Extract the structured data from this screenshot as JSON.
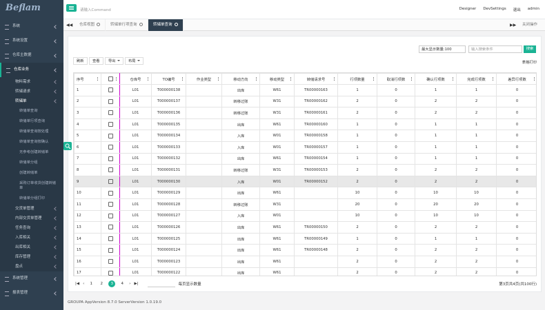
{
  "logo": "Beflam",
  "topbar": {
    "command_placeholder": "请输入Command",
    "links": [
      "Designer",
      "DevSettings",
      "退出",
      "admin"
    ]
  },
  "sidebar": [
    {
      "label": "系统"
    },
    {
      "label": "系统设置"
    },
    {
      "label": "仓库主数据"
    },
    {
      "label": "仓库业务",
      "children": [
        {
          "label": "物料需求"
        },
        {
          "label": "转储请求"
        },
        {
          "label": "转储单",
          "children": [
            {
              "label": "转储单查询"
            },
            {
              "label": "转储单行项查询"
            },
            {
              "label": "转储单查询按处理"
            },
            {
              "label": "转储单查询按确认"
            },
            {
              "label": "无参考创建转储单"
            },
            {
              "label": "转储单分组"
            },
            {
              "label": "创建转储单"
            },
            {
              "label": "采购订单收货创建转储单"
            },
            {
              "label": "转储单分组打印"
            }
          ]
        },
        {
          "label": "交货单管理"
        },
        {
          "label": "内部交货单管理"
        },
        {
          "label": "任务查询"
        },
        {
          "label": "入库相关"
        },
        {
          "label": "出库相关"
        },
        {
          "label": "库存管理"
        },
        {
          "label": "盘点"
        }
      ]
    },
    {
      "label": "系统管理"
    },
    {
      "label": "报表管理"
    }
  ],
  "tabs": [
    "仓库视图",
    "转储单行项查询",
    "转储单查询"
  ],
  "active_tab": 2,
  "tab_close_all": "关闭操作",
  "toolbar": {
    "max_display": "最大显示数量:100",
    "search_placeholder": "输入搜索条件",
    "search_button": "搜索",
    "buttons": [
      "刷新",
      "查看",
      "导出",
      "布局"
    ],
    "table_settings": "表格打印"
  },
  "table": {
    "columns": [
      "序号",
      "仓库号",
      "TO编号",
      "作业类型",
      "移动方向",
      "移动类型",
      "转储请求号",
      "行项数量",
      "取消行项数",
      "确认行项数",
      "完成行项数",
      "差异行项数"
    ],
    "highlighted_row": 8,
    "rows": [
      [
        1,
        "L01",
        "T000000138",
        null,
        "出库",
        "W61",
        "TR00000163",
        1,
        0,
        1,
        1,
        0
      ],
      [
        2,
        "L01",
        "T000000137",
        null,
        "转移过账",
        "W31",
        "TR00000162",
        2,
        0,
        2,
        2,
        0
      ],
      [
        3,
        "L01",
        "T000000136",
        null,
        "转移过账",
        "W31",
        "TR00000161",
        2,
        0,
        2,
        2,
        0
      ],
      [
        4,
        "L01",
        "T000000135",
        null,
        "出库",
        "W61",
        "TR00000160",
        1,
        0,
        1,
        1,
        0
      ],
      [
        5,
        "L01",
        "T000000134",
        null,
        "入库",
        "W01",
        "TR00000158",
        1,
        0,
        1,
        1,
        0
      ],
      [
        6,
        "L01",
        "T000000133",
        null,
        "入库",
        "W01",
        "TR00000157",
        1,
        0,
        1,
        1,
        0
      ],
      [
        7,
        "L01",
        "T000000132",
        null,
        "出库",
        "W61",
        "TR00000154",
        1,
        0,
        1,
        1,
        0
      ],
      [
        8,
        "L01",
        "T000000131",
        null,
        "转移过账",
        "W31",
        "TR00000153",
        2,
        0,
        2,
        2,
        0
      ],
      [
        9,
        "L01",
        "T000000130",
        null,
        "入库",
        "W01",
        "TR00000152",
        2,
        0,
        2,
        2,
        0
      ],
      [
        10,
        "L01",
        "T000000129",
        null,
        "出库",
        "W61",
        null,
        10,
        0,
        10,
        10,
        0
      ],
      [
        11,
        "L01",
        "T000000128",
        null,
        "转移过账",
        "W31",
        null,
        20,
        0,
        20,
        20,
        0
      ],
      [
        12,
        "L01",
        "T000000127",
        null,
        "入库",
        "W01",
        null,
        10,
        0,
        10,
        10,
        0
      ],
      [
        13,
        "L01",
        "T000000126",
        null,
        "出库",
        "W61",
        "TR00000150",
        2,
        0,
        2,
        2,
        0
      ],
      [
        14,
        "L01",
        "T000000125",
        null,
        "出库",
        "W61",
        "TR00000149",
        1,
        0,
        1,
        1,
        0
      ],
      [
        15,
        "L01",
        "T000000124",
        null,
        "出库",
        "W61",
        "TR00000148",
        2,
        0,
        2,
        2,
        0
      ],
      [
        16,
        "L01",
        "T000000123",
        null,
        "出库",
        "W61",
        null,
        2,
        0,
        2,
        2,
        0
      ],
      [
        17,
        "L01",
        "T000000122",
        null,
        "出库",
        "W61",
        null,
        2,
        0,
        2,
        2,
        0
      ]
    ]
  },
  "pagination": {
    "pages": [
      1,
      2,
      3,
      4
    ],
    "current": 3,
    "per_page_label": "每页显示数量",
    "summary": "第3页共4页(共100行)"
  },
  "footer": "GROUPA AppVersion 8.7.0 ServerVersion 1.0.19.0"
}
